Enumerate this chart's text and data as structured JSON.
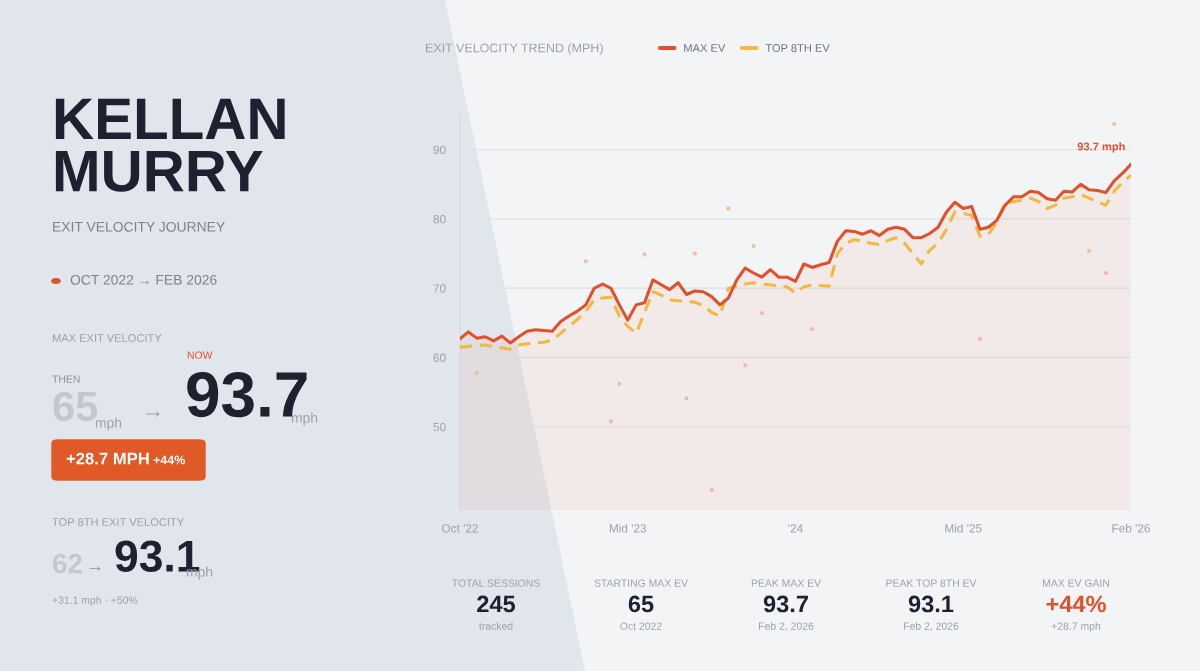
{
  "chart_data": {
    "type": "area",
    "title": "EXIT VELOCITY TREND (MPH)",
    "subtitle": "EXIT VELOCITY JOURNEY",
    "annotations": [
      "KELLAN\nMURRY",
      "OCT 2022 → FEB 2026",
      "MAX EXIT VELOCITY",
      "THEN",
      "65",
      "mph",
      "→",
      "NOW",
      "93.7",
      "mph",
      "+28.7 MPH",
      "+44%",
      "TOP 8TH EXIT VELOCITY",
      "62",
      "→",
      "93.1",
      "mph",
      "+31.1 mph · +50%",
      "TOTAL SESSIONS",
      "245",
      "tracked",
      "STARTING MAX EV",
      "65",
      "Oct 2022",
      "PEAK MAX EV",
      "93.7",
      "Feb 2, 2026",
      "PEAK TOP 8TH EV",
      "93.1",
      "Feb 2, 2026",
      "MAX EV GAIN",
      "+44%",
      "+28.7 mph",
      "93.7 mph"
    ],
    "categories": [
      "Oct '22",
      null,
      null,
      null,
      null,
      null,
      null,
      null,
      null,
      null,
      null,
      null,
      null,
      null,
      null,
      null,
      null,
      null,
      null,
      null,
      "Mid '23",
      null,
      null,
      null,
      null,
      null,
      null,
      null,
      null,
      null,
      null,
      null,
      null,
      null,
      null,
      null,
      null,
      null,
      null,
      null,
      "'24",
      null,
      null,
      null,
      null,
      null,
      null,
      null,
      null,
      null,
      null,
      null,
      null,
      null,
      null,
      null,
      null,
      null,
      null,
      null,
      "Mid '25",
      null,
      null,
      null,
      null,
      null,
      null,
      null,
      null,
      null,
      null,
      null,
      null,
      null,
      null,
      null,
      null,
      null,
      null,
      null,
      "Feb '26"
    ],
    "ylim": [
      38,
      95
    ],
    "yticks": [
      50,
      60,
      70,
      80,
      90
    ],
    "grid": "y",
    "legend": "top",
    "series": [
      {
        "name": "MAX EV",
        "color": "#e0502a",
        "line_style": "solid",
        "values": [
          62.7,
          63.7,
          62.8,
          63.0,
          62.4,
          63.1,
          62.1,
          63.0,
          63.8,
          64.0,
          63.9,
          63.8,
          65.2,
          66.0,
          66.7,
          67.6,
          70.0,
          70.6,
          70.0,
          67.6,
          65.4,
          67.6,
          67.9,
          71.2,
          70.5,
          69.8,
          70.8,
          69.1,
          69.6,
          69.5,
          68.8,
          67.6,
          68.6,
          71.2,
          72.9,
          72.2,
          71.6,
          72.7,
          71.6,
          71.6,
          71.0,
          73.5,
          73.0,
          73.4,
          73.7,
          76.8,
          78.3,
          78.2,
          77.8,
          78.3,
          77.6,
          78.5,
          78.8,
          78.5,
          77.3,
          77.3,
          77.9,
          78.8,
          81.0,
          82.4,
          81.5,
          81.8,
          78.5,
          78.8,
          79.8,
          82.0,
          83.2,
          83.2,
          84.0,
          83.8,
          82.9,
          82.7,
          84.0,
          83.9,
          85.0,
          84.2,
          84.1,
          83.8,
          85.5,
          86.6,
          87.9
        ]
      },
      {
        "name": "TOP 8TH EV",
        "type": "line",
        "color": "#f2b941",
        "line_style": "dashed",
        "values": [
          61.5,
          61.6,
          61.7,
          61.8,
          61.6,
          61.4,
          61.2,
          61.8,
          62.0,
          62.1,
          62.2,
          62.5,
          63.5,
          64.5,
          65.5,
          66.7,
          68.3,
          68.6,
          68.7,
          66,
          64.5,
          63.5,
          66.5,
          69.5,
          69.0,
          68.3,
          68.2,
          68.1,
          68,
          67.5,
          66.5,
          66,
          70,
          70.3,
          70.6,
          70.8,
          70.6,
          70.5,
          70.3,
          70.2,
          69.3,
          70.2,
          70.5,
          70.4,
          70.3,
          75,
          76.5,
          77,
          76.8,
          76.5,
          76.3,
          76.9,
          77.3,
          76.5,
          75,
          73.5,
          75.5,
          76.5,
          78.5,
          81,
          80.8,
          80.5,
          77.5,
          77.8,
          79.5,
          82.3,
          82.5,
          82.7,
          83,
          82.5,
          81.5,
          82,
          83,
          83.2,
          83.5,
          83,
          82.5,
          82,
          84,
          85.3,
          86.3
        ]
      },
      {
        "type": "scatter",
        "color": "#f4b08a",
        "marker": "circle",
        "values": [
          null,
          null,
          57.8,
          null,
          null,
          null,
          null,
          null,
          null,
          null,
          null,
          null,
          null,
          null,
          null,
          73.9,
          null,
          null,
          50.8,
          56.2,
          null,
          null,
          74.9,
          null,
          null,
          null,
          null,
          54.1,
          75.0,
          null,
          40.9,
          null,
          81.5,
          null,
          58.9,
          76.1,
          66.4,
          null,
          null,
          null,
          null,
          null,
          64.1,
          null,
          null,
          null,
          null,
          null,
          null,
          null,
          null,
          null,
          null,
          null,
          null,
          null,
          null,
          null,
          null,
          null,
          null,
          null,
          62.7,
          null,
          null,
          null,
          null,
          null,
          null,
          null,
          null,
          null,
          null,
          null,
          null,
          75.4,
          null,
          72.2,
          93.7,
          null,
          null
        ]
      }
    ]
  }
}
